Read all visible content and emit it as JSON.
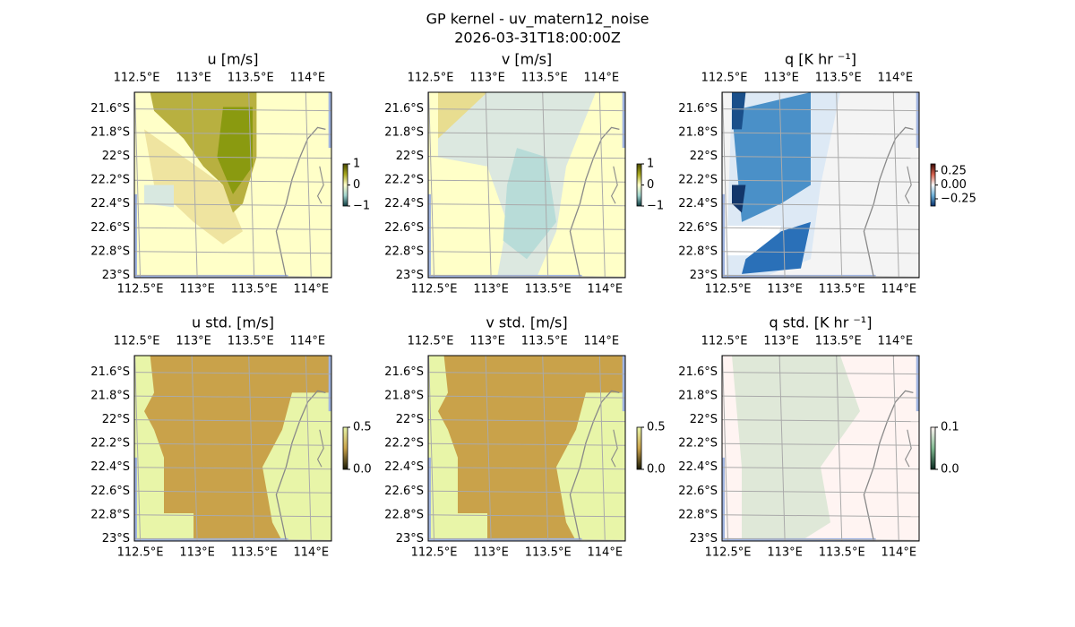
{
  "title": "GP kernel - uv_matern12_noise",
  "subtitle": "2026-03-31T18:00:00Z",
  "xlim": [
    112.48,
    114.21
  ],
  "ylim": [
    -23.02,
    -21.46
  ],
  "lon_ticks": [
    {
      "value": 112.5,
      "label": "112.5°E"
    },
    {
      "value": 113,
      "label": "113°E"
    },
    {
      "value": 113.5,
      "label": "113.5°E"
    },
    {
      "value": 114,
      "label": "114°E"
    }
  ],
  "lat_ticks": [
    {
      "value": -21.6,
      "label": "21.6°S"
    },
    {
      "value": -21.8,
      "label": "21.8°S"
    },
    {
      "value": -22,
      "label": "22°S"
    },
    {
      "value": -22.2,
      "label": "22.2°S"
    },
    {
      "value": -22.4,
      "label": "22.4°S"
    },
    {
      "value": -22.6,
      "label": "22.6°S"
    },
    {
      "value": -22.8,
      "label": "22.8°S"
    },
    {
      "value": -23,
      "label": "23°S"
    }
  ],
  "panels": [
    {
      "title": "u [m/s]",
      "colorbar": {
        "lim": [
          -1,
          1
        ],
        "ticks": [
          1,
          0,
          {
            "value": -1,
            "label": "−1"
          }
        ],
        "colormap": [
          "#0b3b3f",
          "#9fd3cd",
          "#ffffcc",
          "#a8a820",
          "#4a4a00"
        ]
      }
    },
    {
      "title": "v [m/s]",
      "colorbar": {
        "lim": [
          -1,
          1
        ],
        "ticks": [
          1,
          0,
          {
            "value": -1,
            "label": "−1"
          }
        ],
        "colormap": [
          "#0b3b3f",
          "#9fd3cd",
          "#ffffcc",
          "#a8a820",
          "#4a4a00"
        ]
      }
    },
    {
      "title": "q [K hr ⁻¹]",
      "colorbar": {
        "lim": [
          -0.38,
          0.38
        ],
        "ticks": [
          0.25,
          {
            "value": 0,
            "label": "0.00"
          },
          {
            "value": -0.25,
            "label": "−0.25"
          }
        ],
        "colormap": [
          "#08306b",
          "#6baed6",
          "#f7f7f7",
          "#d6604d",
          "#3a0a05"
        ]
      }
    },
    {
      "title": "u std. [m/s]",
      "colorbar": {
        "lim": [
          0,
          0.5
        ],
        "ticks": [
          0.5,
          {
            "value": 0,
            "label": "0.0"
          }
        ],
        "colormap": [
          "#1a1a05",
          "#c9a24a",
          "#e8f5a8"
        ]
      }
    },
    {
      "title": "v std. [m/s]",
      "colorbar": {
        "lim": [
          0,
          0.5
        ],
        "ticks": [
          0.5,
          {
            "value": 0,
            "label": "0.0"
          }
        ],
        "colormap": [
          "#1a1a05",
          "#c9a24a",
          "#e8f5a8"
        ]
      }
    },
    {
      "title": "q std. [K hr ⁻¹]",
      "colorbar": {
        "lim": [
          0,
          0.1
        ],
        "ticks": [
          0.1,
          {
            "value": 0,
            "label": "0.0"
          }
        ],
        "colormap": [
          "#0a2a20",
          "#7fb890",
          "#fff4f2"
        ]
      }
    }
  ]
}
